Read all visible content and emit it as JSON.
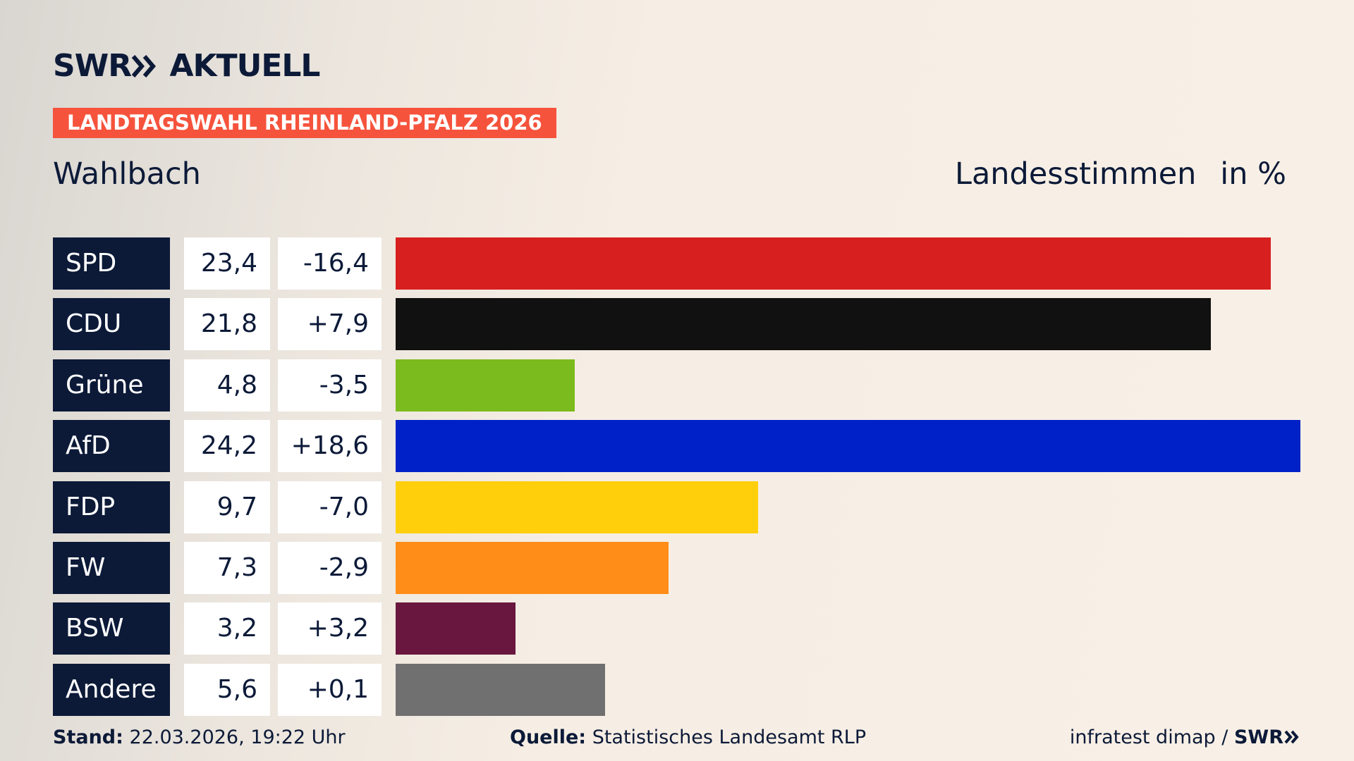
{
  "chart_data": {
    "type": "bar",
    "logo": {
      "brand": "SWR",
      "product": "AKTUELL"
    },
    "banner": "LANDTAGSWAHL RHEINLAND-PFALZ 2026",
    "title": "Wahlbach",
    "measure": "Landesstimmen",
    "unit": "in %",
    "categories": [
      "SPD",
      "CDU",
      "Grüne",
      "AfD",
      "FDP",
      "FW",
      "BSW",
      "Andere"
    ],
    "values": [
      23.4,
      21.8,
      4.8,
      24.2,
      9.7,
      7.3,
      3.2,
      5.6
    ],
    "value_labels": [
      "23,4",
      "21,8",
      "4,8",
      "24,2",
      "9,7",
      "7,3",
      "3,2",
      "5,6"
    ],
    "change_labels": [
      "-16,4",
      "+7,9",
      "-3,5",
      "+18,6",
      "-7,0",
      "-2,9",
      "+3,2",
      "+0,1"
    ],
    "colors": [
      "#d71f1f",
      "#111111",
      "#7cbb1d",
      "#0021c8",
      "#ffcf0b",
      "#ff8d17",
      "#69173e",
      "#707070"
    ],
    "footer": {
      "stand_label": "Stand:",
      "stand": "22.03.2026, 19:22 Uhr",
      "source_label": "Quelle:",
      "source": "Statistisches Landesamt RLP",
      "credit": "infratest dimap /",
      "credit_brand": "SWR"
    }
  }
}
